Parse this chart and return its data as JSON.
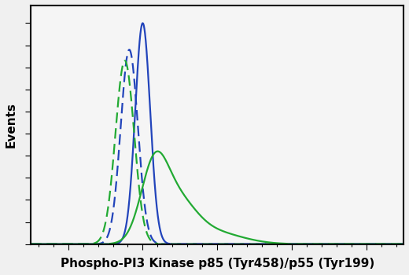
{
  "title": "",
  "xlabel": "Phospho-PI3 Kinase p85 (Tyr458)/p55 (Tyr199)",
  "ylabel": "Events",
  "background_color": "#f0f0f0",
  "plot_bg_color": "#f5f5f5",
  "border_color": "#000000",
  "curves": [
    {
      "label": "blue_solid",
      "color": "#2244bb",
      "linestyle": "solid",
      "linewidth": 1.6,
      "mu": 3.0,
      "sigma": 0.1,
      "peak": 1.0,
      "shape": "gaussian"
    },
    {
      "label": "blue_dashed",
      "color": "#2244bb",
      "linestyle": "dashed",
      "linewidth": 1.6,
      "mu": 2.82,
      "sigma": 0.115,
      "peak": 0.88,
      "shape": "gaussian"
    },
    {
      "label": "green_dashed",
      "color": "#22aa33",
      "linestyle": "dashed",
      "linewidth": 1.6,
      "mu": 2.76,
      "sigma": 0.125,
      "peak": 0.83,
      "shape": "gaussian"
    },
    {
      "label": "green_solid",
      "color": "#22aa33",
      "linestyle": "solid",
      "linewidth": 1.6,
      "mu": 3.22,
      "sigma": 0.22,
      "peak": 0.42,
      "shape": "irregular"
    }
  ],
  "xlim": [
    1.5,
    6.5
  ],
  "ylim": [
    0.0,
    1.08
  ],
  "xlabel_fontsize": 11,
  "ylabel_fontsize": 11,
  "ylabel_weight": "bold",
  "xlabel_weight": "bold"
}
